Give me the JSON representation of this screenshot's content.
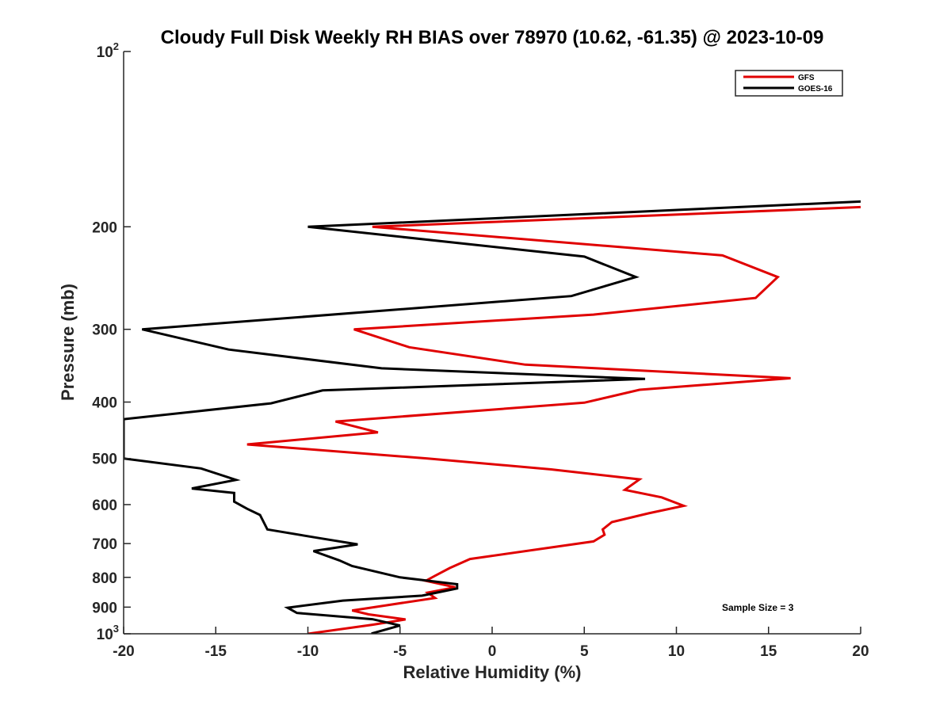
{
  "chart_data": {
    "type": "line",
    "title": "Cloudy Full Disk Weekly RH BIAS over 78970 (10.62, -61.35) @ 2023-10-09",
    "xlabel": "Relative Humidity (%)",
    "ylabel": "Pressure (mb)",
    "xlim": [
      -20,
      20
    ],
    "ylim": [
      1000,
      100
    ],
    "y_scale": "log",
    "y_reversed": true,
    "grid": false,
    "legend_position": "top-right",
    "x_ticks": [
      "-20",
      "-15",
      "-10",
      "-5",
      "0",
      "5",
      "10",
      "15",
      "20"
    ],
    "y_ticks": [
      {
        "value": 100,
        "base": "10",
        "exp": "2"
      },
      {
        "value": 200,
        "label": "200"
      },
      {
        "value": 300,
        "label": "300"
      },
      {
        "value": 400,
        "label": "400"
      },
      {
        "value": 500,
        "label": "500"
      },
      {
        "value": 600,
        "label": "600"
      },
      {
        "value": 700,
        "label": "700"
      },
      {
        "value": 800,
        "label": "800"
      },
      {
        "value": 900,
        "label": "900"
      },
      {
        "value": 1000,
        "base": "10",
        "exp": "3"
      }
    ],
    "annotation": "Sample Size = 3",
    "series": [
      {
        "name": "GFS",
        "color": "#e00000",
        "points": [
          [
            20,
            185
          ],
          [
            -6.5,
            200
          ],
          [
            12.5,
            224
          ],
          [
            15.5,
            244
          ],
          [
            14.3,
            265
          ],
          [
            5.5,
            283
          ],
          [
            -7.5,
            300
          ],
          [
            -4.5,
            322
          ],
          [
            1.8,
            345
          ],
          [
            16.2,
            364
          ],
          [
            8,
            381
          ],
          [
            5,
            401
          ],
          [
            -8.5,
            432
          ],
          [
            -6.2,
            451
          ],
          [
            -13.3,
            473
          ],
          [
            -3.5,
            500
          ],
          [
            3.2,
            522
          ],
          [
            8,
            543
          ],
          [
            7.2,
            566
          ],
          [
            9.2,
            583
          ],
          [
            10.4,
            603
          ],
          [
            8.5,
            621
          ],
          [
            6.5,
            643
          ],
          [
            6,
            662
          ],
          [
            6.1,
            676
          ],
          [
            5.5,
            694
          ],
          [
            -1.2,
            744
          ],
          [
            -2.3,
            771
          ],
          [
            -3.1,
            795
          ],
          [
            -3.6,
            811
          ],
          [
            -2,
            832
          ],
          [
            -3.5,
            850
          ],
          [
            -3.1,
            868
          ],
          [
            -7.6,
            912
          ],
          [
            -6.7,
            926
          ],
          [
            -4.7,
            945
          ],
          [
            -6.5,
            965
          ],
          [
            -10,
            1000
          ]
        ]
      },
      {
        "name": "GOES-16",
        "color": "#000000",
        "points": [
          [
            20,
            181
          ],
          [
            -10,
            200
          ],
          [
            5,
            225
          ],
          [
            7.8,
            244
          ],
          [
            4.3,
            263
          ],
          [
            -19,
            300
          ],
          [
            -14.3,
            325
          ],
          [
            -6,
            350
          ],
          [
            8.3,
            365
          ],
          [
            -9.2,
            382
          ],
          [
            -12,
            402
          ],
          [
            -20,
            428
          ],
          [
            -20,
            500
          ],
          [
            -15.8,
            520
          ],
          [
            -13.9,
            544
          ],
          [
            -16.3,
            563
          ],
          [
            -14,
            573
          ],
          [
            -14,
            593
          ],
          [
            -13.3,
            610
          ],
          [
            -12.6,
            625
          ],
          [
            -12.2,
            662
          ],
          [
            -9.4,
            685
          ],
          [
            -7.3,
            702
          ],
          [
            -9.7,
            721
          ],
          [
            -8.3,
            748
          ],
          [
            -7.6,
            765
          ],
          [
            -5,
            800
          ],
          [
            -1.9,
            822
          ],
          [
            -1.9,
            836
          ],
          [
            -2.7,
            846
          ],
          [
            -3.8,
            860
          ],
          [
            -8.1,
            877
          ],
          [
            -11.1,
            902
          ],
          [
            -10.6,
            921
          ],
          [
            -6.5,
            944
          ],
          [
            -5,
            968
          ],
          [
            -6.5,
            998
          ],
          [
            -6.5,
            1000
          ]
        ]
      }
    ]
  }
}
